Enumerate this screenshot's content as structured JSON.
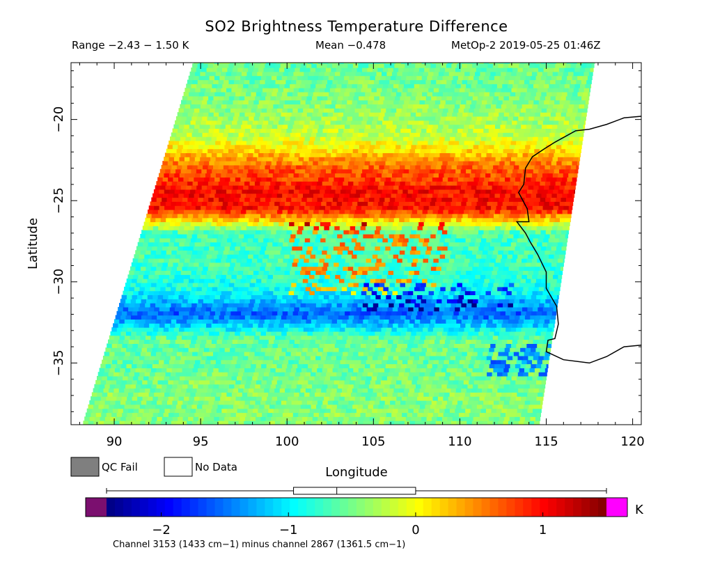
{
  "header": {
    "title": "SO2 Brightness Temperature Difference",
    "range": "Range −2.43 − 1.50 K",
    "mean": "Mean −0.478",
    "satellite": "MetOp-2 2019-05-25 01:46Z"
  },
  "legend": {
    "qc_fail_label": "QC Fail",
    "no_data_label": "No Data",
    "qc_fail_color": "#7f7f7f",
    "no_data_color": "#ffffff"
  },
  "colorbar": {
    "unit": "K",
    "ticks": [
      -2,
      -1,
      0,
      1
    ],
    "tick_labels": [
      "−2",
      "−1",
      "0",
      "1"
    ],
    "range": [
      -2.43,
      1.5
    ],
    "under_color": "#7b0f6f",
    "over_color": "#ff00ff",
    "colormap": "jet",
    "box": {
      "whisker_low": -2.43,
      "q1": -0.96,
      "median": -0.62,
      "q3": 0.0,
      "whisker_high": 1.5
    }
  },
  "footer": "Channel 3153 (1433 cm−1) minus channel 2867 (1361.5 cm−1)",
  "chart_data": {
    "type": "heatmap",
    "title": "SO2 Brightness Temperature Difference",
    "xlabel": "Longitude",
    "ylabel": "Latitude",
    "xlim": [
      87.5,
      120.5
    ],
    "ylim": [
      -38.8,
      -16.5
    ],
    "xticks": [
      90,
      95,
      100,
      105,
      110,
      115,
      120
    ],
    "yticks": [
      -20,
      -25,
      -30,
      -35
    ],
    "ytick_labels": [
      "−20",
      "−25",
      "−30",
      "−35"
    ],
    "swath": {
      "lon_west_at_south": 88.2,
      "lon_west_at_north": 94.6,
      "lon_east_at_south": 114.6,
      "lon_east_at_north": 117.8
    },
    "bands": [
      {
        "lat": -37.0,
        "value": -0.45
      },
      {
        "lat": -35.0,
        "value": -0.55
      },
      {
        "lat": -33.5,
        "value": -0.55
      },
      {
        "lat": -32.0,
        "value": -1.6
      },
      {
        "lat": -30.5,
        "value": -0.9
      },
      {
        "lat": -29.0,
        "value": -0.7
      },
      {
        "lat": -27.0,
        "value": -0.7
      },
      {
        "lat": -25.5,
        "value": 0.95
      },
      {
        "lat": -24.5,
        "value": 1.0
      },
      {
        "lat": -23.0,
        "value": 0.65
      },
      {
        "lat": -21.0,
        "value": -0.2
      },
      {
        "lat": -19.0,
        "value": -0.45
      },
      {
        "lat": -17.0,
        "value": -0.55
      }
    ],
    "coastline": [
      [
        120.5,
        -19.8
      ],
      [
        119.5,
        -19.9
      ],
      [
        118.5,
        -20.3
      ],
      [
        117.5,
        -20.6
      ],
      [
        116.7,
        -20.7
      ],
      [
        115.5,
        -21.4
      ],
      [
        114.9,
        -21.8
      ],
      [
        114.2,
        -22.3
      ],
      [
        113.8,
        -23.0
      ],
      [
        113.7,
        -24.0
      ],
      [
        113.4,
        -24.5
      ],
      [
        113.9,
        -25.5
      ],
      [
        114.0,
        -26.3
      ],
      [
        113.3,
        -26.3
      ],
      [
        113.8,
        -27.0
      ],
      [
        114.1,
        -27.6
      ],
      [
        114.5,
        -28.3
      ],
      [
        115.0,
        -29.4
      ],
      [
        115.0,
        -30.4
      ],
      [
        115.6,
        -31.5
      ],
      [
        115.7,
        -32.6
      ],
      [
        115.5,
        -33.5
      ],
      [
        115.1,
        -33.6
      ],
      [
        115.0,
        -34.3
      ],
      [
        116.0,
        -34.8
      ],
      [
        117.5,
        -35.0
      ],
      [
        118.5,
        -34.6
      ],
      [
        119.5,
        -34.0
      ],
      [
        120.5,
        -33.9
      ]
    ]
  }
}
